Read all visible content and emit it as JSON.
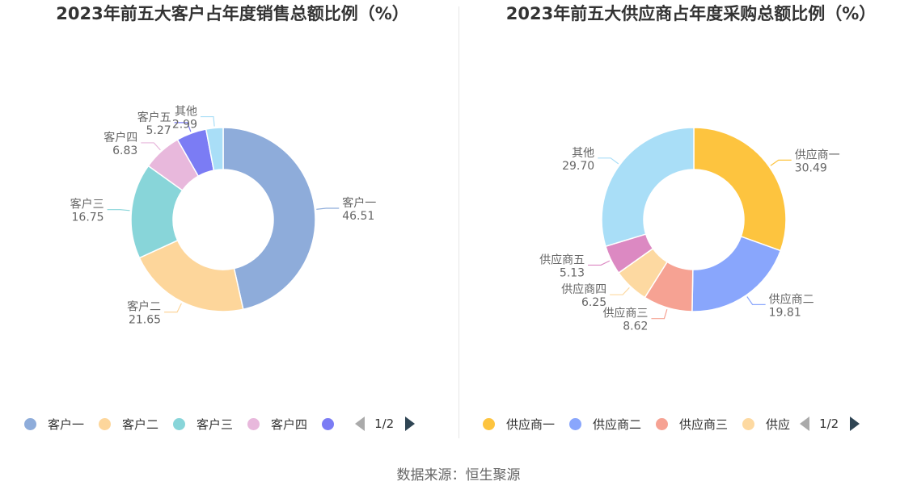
{
  "source": "数据来源：恒生聚源",
  "chart_data": [
    {
      "type": "pie",
      "title": "2023年前五大客户占年度销售总额比例（%）",
      "categories": [
        "客户一",
        "客户二",
        "客户三",
        "客户四",
        "客户五",
        "其他"
      ],
      "values": [
        46.51,
        21.65,
        16.75,
        6.83,
        5.27,
        2.99
      ],
      "value_labels": [
        "46.51",
        "21.65",
        "16.75",
        "6.83",
        "5.27",
        "2.99"
      ],
      "colors": [
        "#8eacda",
        "#fdd69b",
        "#88d5d9",
        "#e8b8dc",
        "#7b7cf4",
        "#a9def7"
      ],
      "legend": {
        "placement": "bottom",
        "visible_items": [
          "客户一",
          "客户二",
          "客户三",
          "客户四"
        ],
        "truncated_item": "",
        "page": "1/2"
      }
    },
    {
      "type": "pie",
      "title": "2023年前五大供应商占年度采购总额比例（%）",
      "categories": [
        "供应商一",
        "供应商二",
        "供应商三",
        "供应商四",
        "供应商五",
        "其他"
      ],
      "values": [
        30.49,
        19.81,
        8.62,
        6.25,
        5.13,
        29.7
      ],
      "value_labels": [
        "30.49",
        "19.81",
        "8.62",
        "6.25",
        "5.13",
        "29.70"
      ],
      "colors": [
        "#fdc43f",
        "#89a6fc",
        "#f6a293",
        "#fdd9a1",
        "#dc89c2",
        "#a9def7"
      ],
      "legend": {
        "placement": "bottom",
        "visible_items": [
          "供应商一",
          "供应商二",
          "供应商三"
        ],
        "truncated_item": "供应",
        "page": "1/2"
      }
    }
  ]
}
